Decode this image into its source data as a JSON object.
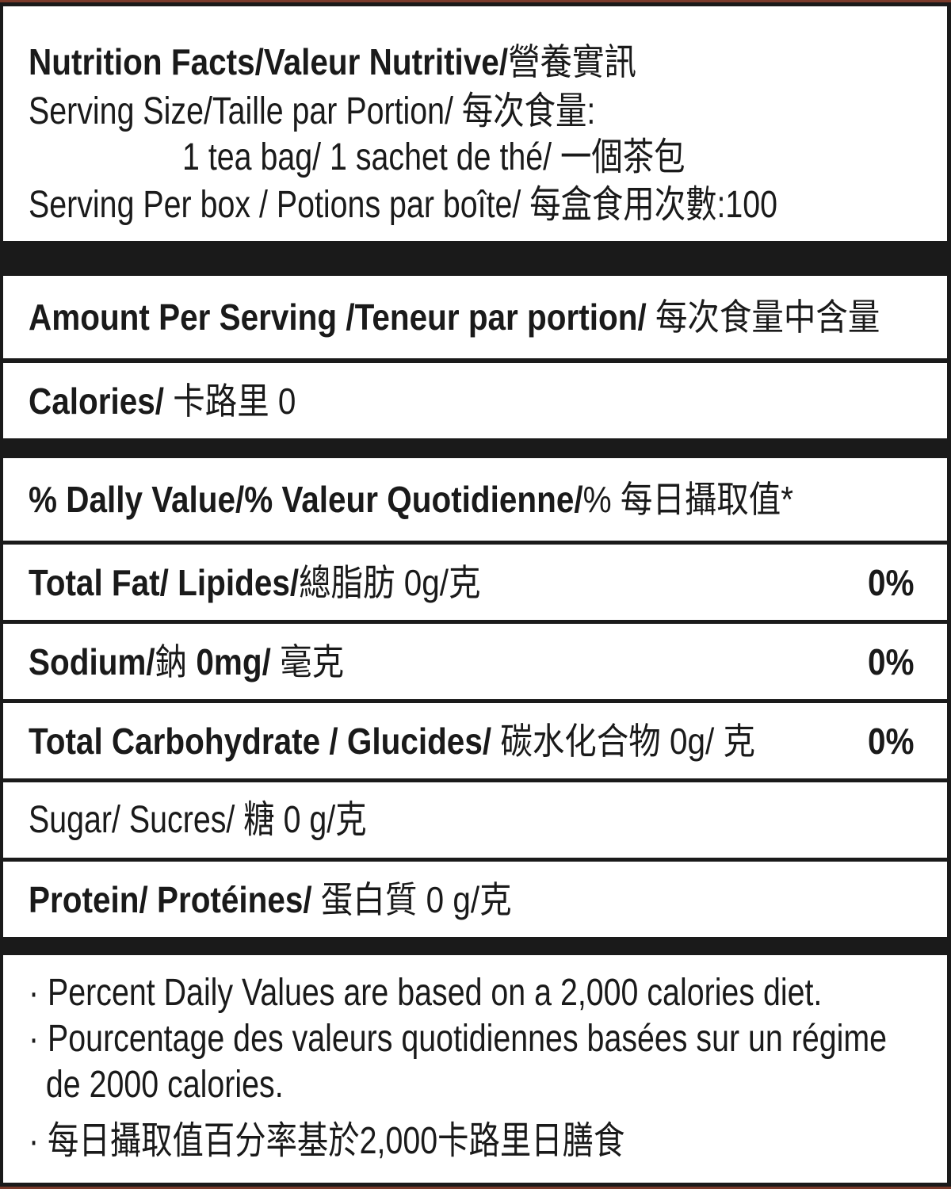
{
  "header": {
    "title_bold": "Nutrition Facts/Valeur Nutritive/",
    "title_cjk": "營養實訊",
    "serving_size_label": "Serving Size/Taille par Portion/ 每次食量:",
    "serving_size_value": "1 tea bag/ 1 sachet de thé/ 一個茶包",
    "servings_per_box": "Serving Per  box / Potions par boîte/ 每盒食用次數:100"
  },
  "amount_per_serving": {
    "bold": "Amount Per Serving /Teneur par portion/",
    "regular": " 每次食量中含量"
  },
  "calories": {
    "bold": "Calories/",
    "regular": " 卡路里 0"
  },
  "daily_value_header": {
    "bold": "% Dally Value/% Valeur Quotidienne/",
    "regular": "% 每日攝取值*"
  },
  "nutrients": [
    {
      "bold": "Total Fat/ Lipides/",
      "regular": "總脂肪 0g/克",
      "percent": "0%"
    },
    {
      "bold": "Sodium/",
      "regular": "鈉 ",
      "bold2": "0mg/",
      "regular2": " 毫克",
      "percent": "0%"
    },
    {
      "bold": "Total Carbohydrate / Glucides/",
      "regular": " 碳水化合物 0g/ 克",
      "percent": "0%"
    },
    {
      "bold": "",
      "regular": "Sugar/ Sucres/ 糖  0 g/克",
      "percent": ""
    },
    {
      "bold": "Protein/ Protéines/",
      "regular": " 蛋白質  0 g/克",
      "percent": ""
    }
  ],
  "footnotes": [
    "· Percent Daily Values are based on a 2,000 calories diet.",
    "· Pourcentage des valeurs quotidiennes basées sur un régime",
    "  de 2000 calories.",
    "· 每日攝取值百分率基於2,000卡路里日膳食"
  ]
}
